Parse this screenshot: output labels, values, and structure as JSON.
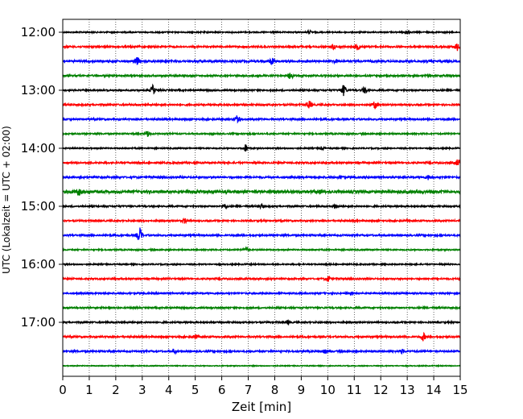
{
  "chart_data": {
    "type": "line",
    "title": "",
    "xlabel": "Zeit  [min]",
    "ylabel": "UTC (Lokalzeit = UTC + 02:00)",
    "xlim": [
      0,
      15
    ],
    "x_ticks": [
      0,
      1,
      2,
      3,
      4,
      5,
      6,
      7,
      8,
      9,
      10,
      11,
      12,
      13,
      14,
      15
    ],
    "x_grid": true,
    "y_tick_labels": [
      "12:00",
      "13:00",
      "14:00",
      "15:00",
      "16:00",
      "17:00"
    ],
    "trace_interval_min": 15,
    "trace_color_cycle": [
      "#000000",
      "#ff0000",
      "#0000ff",
      "#008000"
    ],
    "traces": [
      {
        "start": "12:00",
        "color": "#000000",
        "amplitude": 0.1,
        "events": [
          {
            "t": 9.3,
            "a": 0.25
          },
          {
            "t": 13.0,
            "a": 0.45
          }
        ]
      },
      {
        "start": "12:15",
        "color": "#ff0000",
        "amplitude": 0.13,
        "events": [
          {
            "t": 10.2,
            "a": 0.35
          },
          {
            "t": 11.1,
            "a": 0.45
          },
          {
            "t": 14.9,
            "a": 0.6
          }
        ]
      },
      {
        "start": "12:30",
        "color": "#0000ff",
        "amplitude": 0.15,
        "events": [
          {
            "t": 2.8,
            "a": 0.6
          },
          {
            "t": 7.9,
            "a": 0.5
          },
          {
            "t": 10.3,
            "a": 0.25
          }
        ]
      },
      {
        "start": "12:45",
        "color": "#008000",
        "amplitude": 0.13,
        "events": [
          {
            "t": 8.6,
            "a": 0.55
          }
        ]
      },
      {
        "start": "13:00",
        "color": "#000000",
        "amplitude": 0.12,
        "events": [
          {
            "t": 3.4,
            "a": 0.75
          },
          {
            "t": 10.6,
            "a": 0.85
          },
          {
            "t": 11.4,
            "a": 0.5
          }
        ]
      },
      {
        "start": "13:15",
        "color": "#ff0000",
        "amplitude": 0.13,
        "events": [
          {
            "t": 9.3,
            "a": 0.6
          },
          {
            "t": 11.8,
            "a": 0.6
          }
        ]
      },
      {
        "start": "13:30",
        "color": "#0000ff",
        "amplitude": 0.13,
        "events": [
          {
            "t": 6.6,
            "a": 0.65
          }
        ]
      },
      {
        "start": "13:45",
        "color": "#008000",
        "amplitude": 0.11,
        "events": [
          {
            "t": 3.2,
            "a": 0.45
          }
        ]
      },
      {
        "start": "14:00",
        "color": "#000000",
        "amplitude": 0.1,
        "events": [
          {
            "t": 6.9,
            "a": 0.6
          },
          {
            "t": 9.8,
            "a": 0.2
          }
        ]
      },
      {
        "start": "14:15",
        "color": "#ff0000",
        "amplitude": 0.13,
        "events": [
          {
            "t": 14.9,
            "a": 0.5
          }
        ]
      },
      {
        "start": "14:30",
        "color": "#0000ff",
        "amplitude": 0.14,
        "events": [
          {
            "t": 10.5,
            "a": 0.25
          },
          {
            "t": 13.8,
            "a": 0.35
          }
        ]
      },
      {
        "start": "14:45",
        "color": "#008000",
        "amplitude": 0.22,
        "events": [
          {
            "t": 0.6,
            "a": 0.45
          },
          {
            "t": 9.7,
            "a": 0.25
          }
        ]
      },
      {
        "start": "15:00",
        "color": "#000000",
        "amplitude": 0.12,
        "events": [
          {
            "t": 6.1,
            "a": 0.4
          },
          {
            "t": 7.5,
            "a": 0.3
          },
          {
            "t": 10.3,
            "a": 0.3
          }
        ]
      },
      {
        "start": "15:15",
        "color": "#ff0000",
        "amplitude": 0.12,
        "events": [
          {
            "t": 4.6,
            "a": 0.35
          }
        ]
      },
      {
        "start": "15:30",
        "color": "#0000ff",
        "amplitude": 0.13,
        "events": [
          {
            "t": 2.9,
            "a": 1.2
          }
        ]
      },
      {
        "start": "15:45",
        "color": "#008000",
        "amplitude": 0.1,
        "events": [
          {
            "t": 6.9,
            "a": 0.45
          }
        ]
      },
      {
        "start": "16:00",
        "color": "#000000",
        "amplitude": 0.1,
        "events": []
      },
      {
        "start": "16:15",
        "color": "#ff0000",
        "amplitude": 0.12,
        "events": [
          {
            "t": 10.0,
            "a": 0.5
          }
        ]
      },
      {
        "start": "16:30",
        "color": "#0000ff",
        "amplitude": 0.12,
        "events": []
      },
      {
        "start": "16:45",
        "color": "#008000",
        "amplitude": 0.12,
        "events": []
      },
      {
        "start": "17:00",
        "color": "#000000",
        "amplitude": 0.12,
        "events": [
          {
            "t": 8.5,
            "a": 0.3
          }
        ]
      },
      {
        "start": "17:15",
        "color": "#ff0000",
        "amplitude": 0.13,
        "events": [
          {
            "t": 5.0,
            "a": 0.3
          },
          {
            "t": 13.6,
            "a": 0.6
          }
        ]
      },
      {
        "start": "17:30",
        "color": "#0000ff",
        "amplitude": 0.13,
        "events": [
          {
            "t": 4.2,
            "a": 0.3
          },
          {
            "t": 9.9,
            "a": 0.3
          },
          {
            "t": 12.8,
            "a": 0.3
          }
        ]
      },
      {
        "start": "17:45",
        "color": "#008000",
        "amplitude": 0.07,
        "events": []
      }
    ]
  }
}
